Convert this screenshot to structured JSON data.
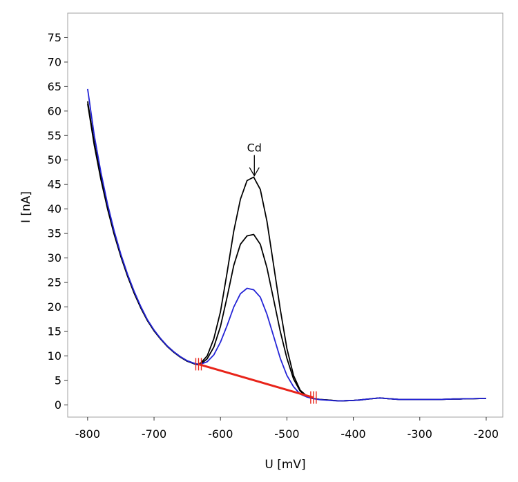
{
  "chart_data": {
    "type": "line",
    "title": "",
    "xlabel": "U [mV]",
    "ylabel": "I [nA]",
    "xlim": [
      -830,
      -175
    ],
    "ylim": [
      -2.5,
      80
    ],
    "x_ticks": [
      -800,
      -700,
      -600,
      -500,
      -400,
      -300,
      -200
    ],
    "x_tick_labels": [
      "-800",
      "-700",
      "-600",
      "-500",
      "-400",
      "-300",
      "-200"
    ],
    "y_ticks": [
      0,
      5,
      10,
      15,
      20,
      25,
      30,
      35,
      40,
      45,
      50,
      55,
      60,
      65,
      70,
      75
    ],
    "y_tick_labels": [
      "0",
      "5",
      "10",
      "15",
      "20",
      "25",
      "30",
      "35",
      "40",
      "45",
      "50",
      "55",
      "60",
      "65",
      "70",
      "75"
    ],
    "grid": false,
    "legend": "none",
    "series": [
      {
        "color": "#000000",
        "x": [
          -800,
          -790,
          -780,
          -770,
          -760,
          -750,
          -740,
          -730,
          -720,
          -710,
          -700,
          -690,
          -680,
          -670,
          -660,
          -650,
          -640,
          -635,
          -630,
          -620,
          -610,
          -600,
          -590,
          -580,
          -570,
          -560,
          -550,
          -540,
          -530,
          -520,
          -510,
          -500,
          -490,
          -480,
          -470,
          -465,
          -460,
          -450,
          -440,
          -430,
          -420,
          -410,
          -400,
          -390,
          -380,
          -370,
          -360,
          -350,
          -340,
          -330,
          -320,
          -310,
          -300,
          -290,
          -280,
          -270,
          -260,
          -250,
          -240,
          -230,
          -220,
          -210,
          -200
        ],
        "y": [
          62,
          53.5,
          46.5,
          40.5,
          35,
          30.5,
          26.5,
          23,
          20,
          17.3,
          15.2,
          13.5,
          12,
          10.8,
          9.8,
          9,
          8.5,
          8.3,
          8.5,
          10,
          13.5,
          19,
          27,
          35.5,
          42,
          45.8,
          46.5,
          44,
          37.5,
          28.5,
          19.5,
          11.5,
          6,
          3,
          1.8,
          1.5,
          1.3,
          1.1,
          1,
          0.9,
          0.8,
          0.85,
          0.9,
          1,
          1.15,
          1.3,
          1.4,
          1.3,
          1.2,
          1.1,
          1.1,
          1.1,
          1.1,
          1.1,
          1.1,
          1.1,
          1.15,
          1.2,
          1.2,
          1.25,
          1.25,
          1.3,
          1.3
        ]
      },
      {
        "color": "#000000",
        "x": [
          -800,
          -790,
          -780,
          -770,
          -760,
          -750,
          -740,
          -730,
          -720,
          -710,
          -700,
          -690,
          -680,
          -670,
          -660,
          -650,
          -640,
          -635,
          -630,
          -620,
          -610,
          -600,
          -590,
          -580,
          -570,
          -560,
          -550,
          -540,
          -530,
          -520,
          -510,
          -500,
          -490,
          -480,
          -470,
          -465,
          -460,
          -450,
          -440,
          -430,
          -420,
          -410,
          -400,
          -390,
          -380,
          -370,
          -360,
          -350,
          -340,
          -330,
          -320,
          -310,
          -300,
          -290,
          -280,
          -270,
          -260,
          -250,
          -240,
          -230,
          -220,
          -210,
          -200
        ],
        "y": [
          61.5,
          53,
          46,
          40,
          34.8,
          30.3,
          26.3,
          22.8,
          19.8,
          17.2,
          15.1,
          13.4,
          11.9,
          10.7,
          9.7,
          8.9,
          8.4,
          8.2,
          8.3,
          9.4,
          11.8,
          16,
          22,
          28.5,
          32.8,
          34.5,
          34.8,
          32.8,
          28,
          21.5,
          15,
          9.5,
          5.3,
          2.8,
          1.7,
          1.5,
          1.3,
          1.1,
          1,
          0.9,
          0.8,
          0.85,
          0.9,
          1,
          1.15,
          1.3,
          1.4,
          1.3,
          1.2,
          1.1,
          1.1,
          1.1,
          1.1,
          1.1,
          1.1,
          1.1,
          1.15,
          1.2,
          1.2,
          1.25,
          1.25,
          1.3,
          1.3
        ]
      },
      {
        "color": "#2323d6",
        "x": [
          -800,
          -790,
          -780,
          -770,
          -760,
          -750,
          -740,
          -730,
          -720,
          -710,
          -700,
          -690,
          -680,
          -670,
          -660,
          -650,
          -640,
          -635,
          -630,
          -620,
          -610,
          -600,
          -590,
          -580,
          -570,
          -560,
          -550,
          -540,
          -530,
          -520,
          -510,
          -500,
          -490,
          -480,
          -470,
          -465,
          -460,
          -450,
          -440,
          -430,
          -420,
          -410,
          -400,
          -390,
          -380,
          -370,
          -360,
          -350,
          -340,
          -330,
          -320,
          -310,
          -300,
          -290,
          -280,
          -270,
          -260,
          -250,
          -240,
          -230,
          -220,
          -210,
          -200
        ],
        "y": [
          64.5,
          55,
          47.5,
          41,
          35.5,
          30.8,
          26.7,
          23.2,
          20.1,
          17.4,
          15.3,
          13.5,
          12,
          10.8,
          9.8,
          9,
          8.5,
          8.3,
          8.3,
          8.8,
          10.2,
          12.8,
          16.2,
          20,
          22.7,
          23.8,
          23.5,
          22,
          18.5,
          14,
          9.5,
          6,
          3.7,
          2.2,
          1.6,
          1.4,
          1.25,
          1.05,
          0.95,
          0.85,
          0.8,
          0.85,
          0.9,
          1,
          1.15,
          1.3,
          1.4,
          1.3,
          1.2,
          1.1,
          1.1,
          1.1,
          1.1,
          1.1,
          1.1,
          1.1,
          1.15,
          1.2,
          1.2,
          1.25,
          1.25,
          1.3,
          1.3
        ]
      }
    ],
    "baseline": {
      "color": "#e8241a",
      "start": {
        "x": -633,
        "y": 8.3
      },
      "end": {
        "x": -460,
        "y": 1.5
      }
    },
    "annotations": [
      {
        "text": "Cd",
        "x": -549,
        "y": 46.5,
        "arrow": true
      }
    ]
  }
}
